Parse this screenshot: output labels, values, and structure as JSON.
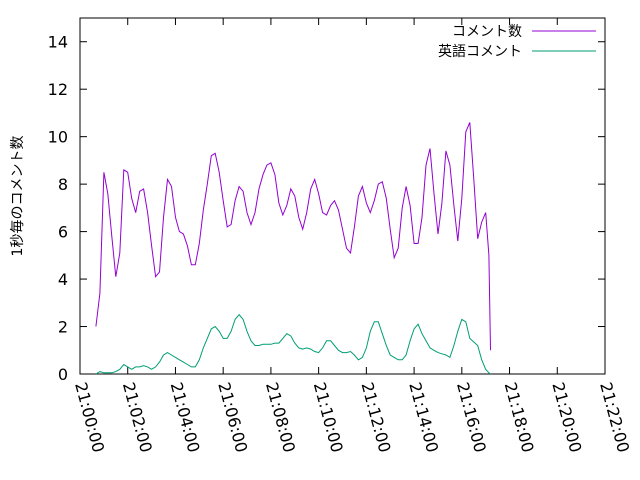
{
  "chart_data": {
    "type": "line",
    "title": "",
    "xlabel": "",
    "ylabel": "1秒毎のコメント数",
    "xlim": [
      "21:00:00",
      "21:22:00"
    ],
    "ylim": [
      0,
      15
    ],
    "x_ticks": [
      "21:00:00",
      "21:02:00",
      "21:04:00",
      "21:06:00",
      "21:08:00",
      "21:10:00",
      "21:12:00",
      "21:14:00",
      "21:16:00",
      "21:18:00",
      "21:20:00",
      "21:22:00"
    ],
    "y_ticks": [
      0,
      2,
      4,
      6,
      8,
      10,
      12,
      14
    ],
    "grid": false,
    "legend_position": "top-right",
    "series": [
      {
        "name": "コメント数",
        "color": "#9400d3",
        "points": [
          [
            "21:00:40",
            2.0
          ],
          [
            "21:00:50",
            3.4
          ],
          [
            "21:01:00",
            8.5
          ],
          [
            "21:01:10",
            7.6
          ],
          [
            "21:01:20",
            5.8
          ],
          [
            "21:01:30",
            4.1
          ],
          [
            "21:01:40",
            5.1
          ],
          [
            "21:01:50",
            8.6
          ],
          [
            "21:02:00",
            8.5
          ],
          [
            "21:02:10",
            7.4
          ],
          [
            "21:02:20",
            6.8
          ],
          [
            "21:02:30",
            7.7
          ],
          [
            "21:02:40",
            7.8
          ],
          [
            "21:02:50",
            6.8
          ],
          [
            "21:03:00",
            5.4
          ],
          [
            "21:03:10",
            4.1
          ],
          [
            "21:03:20",
            4.3
          ],
          [
            "21:03:30",
            6.6
          ],
          [
            "21:03:40",
            8.2
          ],
          [
            "21:03:50",
            7.9
          ],
          [
            "21:04:00",
            6.6
          ],
          [
            "21:04:10",
            6.0
          ],
          [
            "21:04:20",
            5.9
          ],
          [
            "21:04:30",
            5.4
          ],
          [
            "21:04:40",
            4.6
          ],
          [
            "21:04:50",
            4.6
          ],
          [
            "21:05:00",
            5.5
          ],
          [
            "21:05:10",
            6.9
          ],
          [
            "21:05:20",
            8.0
          ],
          [
            "21:05:30",
            9.2
          ],
          [
            "21:05:40",
            9.3
          ],
          [
            "21:05:50",
            8.5
          ],
          [
            "21:06:00",
            7.3
          ],
          [
            "21:06:10",
            6.2
          ],
          [
            "21:06:20",
            6.3
          ],
          [
            "21:06:30",
            7.3
          ],
          [
            "21:06:40",
            7.9
          ],
          [
            "21:06:50",
            7.7
          ],
          [
            "21:07:00",
            6.8
          ],
          [
            "21:07:10",
            6.3
          ],
          [
            "21:07:20",
            6.8
          ],
          [
            "21:07:30",
            7.8
          ],
          [
            "21:07:40",
            8.4
          ],
          [
            "21:07:50",
            8.8
          ],
          [
            "21:08:00",
            8.9
          ],
          [
            "21:08:10",
            8.4
          ],
          [
            "21:08:20",
            7.2
          ],
          [
            "21:08:30",
            6.7
          ],
          [
            "21:08:40",
            7.1
          ],
          [
            "21:08:50",
            7.8
          ],
          [
            "21:09:00",
            7.5
          ],
          [
            "21:09:10",
            6.6
          ],
          [
            "21:09:20",
            6.1
          ],
          [
            "21:09:30",
            6.8
          ],
          [
            "21:09:40",
            7.8
          ],
          [
            "21:09:50",
            8.2
          ],
          [
            "21:10:00",
            7.6
          ],
          [
            "21:10:10",
            6.8
          ],
          [
            "21:10:20",
            6.7
          ],
          [
            "21:10:30",
            7.1
          ],
          [
            "21:10:40",
            7.3
          ],
          [
            "21:10:50",
            6.9
          ],
          [
            "21:11:00",
            6.1
          ],
          [
            "21:11:10",
            5.3
          ],
          [
            "21:11:20",
            5.1
          ],
          [
            "21:11:30",
            6.2
          ],
          [
            "21:11:40",
            7.5
          ],
          [
            "21:11:50",
            7.9
          ],
          [
            "21:12:00",
            7.2
          ],
          [
            "21:12:10",
            6.8
          ],
          [
            "21:12:20",
            7.3
          ],
          [
            "21:12:30",
            8.0
          ],
          [
            "21:12:40",
            8.1
          ],
          [
            "21:12:50",
            7.4
          ],
          [
            "21:13:00",
            6.1
          ],
          [
            "21:13:10",
            4.9
          ],
          [
            "21:13:20",
            5.3
          ],
          [
            "21:13:30",
            7.0
          ],
          [
            "21:13:40",
            7.9
          ],
          [
            "21:13:50",
            7.1
          ],
          [
            "21:14:00",
            5.5
          ],
          [
            "21:14:10",
            5.5
          ],
          [
            "21:14:20",
            6.6
          ],
          [
            "21:14:30",
            8.8
          ],
          [
            "21:14:40",
            9.5
          ],
          [
            "21:14:50",
            7.6
          ],
          [
            "21:15:00",
            5.9
          ],
          [
            "21:15:10",
            7.2
          ],
          [
            "21:15:20",
            9.4
          ],
          [
            "21:15:30",
            8.8
          ],
          [
            "21:15:40",
            7.1
          ],
          [
            "21:15:50",
            5.6
          ],
          [
            "21:16:00",
            7.4
          ],
          [
            "21:16:10",
            10.2
          ],
          [
            "21:16:20",
            10.6
          ],
          [
            "21:16:30",
            8.2
          ],
          [
            "21:16:40",
            5.7
          ],
          [
            "21:16:50",
            6.4
          ],
          [
            "21:17:00",
            6.8
          ],
          [
            "21:17:08",
            5.0
          ],
          [
            "21:17:12",
            1.0
          ]
        ]
      },
      {
        "name": "英語コメント",
        "color": "#009e73",
        "points": [
          [
            "21:00:40",
            0.0
          ],
          [
            "21:00:50",
            0.1
          ],
          [
            "21:01:00",
            0.05
          ],
          [
            "21:01:10",
            0.05
          ],
          [
            "21:01:20",
            0.05
          ],
          [
            "21:01:30",
            0.1
          ],
          [
            "21:01:40",
            0.2
          ],
          [
            "21:01:50",
            0.4
          ],
          [
            "21:02:00",
            0.3
          ],
          [
            "21:02:10",
            0.2
          ],
          [
            "21:02:20",
            0.3
          ],
          [
            "21:02:30",
            0.3
          ],
          [
            "21:02:40",
            0.35
          ],
          [
            "21:02:50",
            0.3
          ],
          [
            "21:03:00",
            0.2
          ],
          [
            "21:03:10",
            0.3
          ],
          [
            "21:03:20",
            0.5
          ],
          [
            "21:03:30",
            0.8
          ],
          [
            "21:03:40",
            0.9
          ],
          [
            "21:03:50",
            0.8
          ],
          [
            "21:04:00",
            0.7
          ],
          [
            "21:04:10",
            0.6
          ],
          [
            "21:04:20",
            0.5
          ],
          [
            "21:04:30",
            0.4
          ],
          [
            "21:04:40",
            0.3
          ],
          [
            "21:04:50",
            0.3
          ],
          [
            "21:05:00",
            0.6
          ],
          [
            "21:05:10",
            1.1
          ],
          [
            "21:05:20",
            1.5
          ],
          [
            "21:05:30",
            1.9
          ],
          [
            "21:05:40",
            2.0
          ],
          [
            "21:05:50",
            1.8
          ],
          [
            "21:06:00",
            1.5
          ],
          [
            "21:06:10",
            1.5
          ],
          [
            "21:06:20",
            1.8
          ],
          [
            "21:06:30",
            2.3
          ],
          [
            "21:06:40",
            2.5
          ],
          [
            "21:06:50",
            2.3
          ],
          [
            "21:07:00",
            1.8
          ],
          [
            "21:07:10",
            1.4
          ],
          [
            "21:07:20",
            1.2
          ],
          [
            "21:07:30",
            1.2
          ],
          [
            "21:07:40",
            1.25
          ],
          [
            "21:07:50",
            1.25
          ],
          [
            "21:08:00",
            1.25
          ],
          [
            "21:08:10",
            1.3
          ],
          [
            "21:08:20",
            1.3
          ],
          [
            "21:08:30",
            1.5
          ],
          [
            "21:08:40",
            1.7
          ],
          [
            "21:08:50",
            1.6
          ],
          [
            "21:09:00",
            1.3
          ],
          [
            "21:09:10",
            1.1
          ],
          [
            "21:09:20",
            1.05
          ],
          [
            "21:09:30",
            1.1
          ],
          [
            "21:09:40",
            1.05
          ],
          [
            "21:09:50",
            0.95
          ],
          [
            "21:10:00",
            0.9
          ],
          [
            "21:10:10",
            1.1
          ],
          [
            "21:10:20",
            1.4
          ],
          [
            "21:10:30",
            1.4
          ],
          [
            "21:10:40",
            1.2
          ],
          [
            "21:10:50",
            1.0
          ],
          [
            "21:11:00",
            0.9
          ],
          [
            "21:11:10",
            0.9
          ],
          [
            "21:11:20",
            0.95
          ],
          [
            "21:11:30",
            0.8
          ],
          [
            "21:11:40",
            0.6
          ],
          [
            "21:11:50",
            0.7
          ],
          [
            "21:12:00",
            1.1
          ],
          [
            "21:12:10",
            1.8
          ],
          [
            "21:12:20",
            2.2
          ],
          [
            "21:12:30",
            2.2
          ],
          [
            "21:12:40",
            1.7
          ],
          [
            "21:12:50",
            1.2
          ],
          [
            "21:13:00",
            0.8
          ],
          [
            "21:13:10",
            0.7
          ],
          [
            "21:13:20",
            0.6
          ],
          [
            "21:13:30",
            0.6
          ],
          [
            "21:13:40",
            0.8
          ],
          [
            "21:13:50",
            1.4
          ],
          [
            "21:14:00",
            1.9
          ],
          [
            "21:14:10",
            2.1
          ],
          [
            "21:14:20",
            1.7
          ],
          [
            "21:14:30",
            1.4
          ],
          [
            "21:14:40",
            1.1
          ],
          [
            "21:14:50",
            1.0
          ],
          [
            "21:15:00",
            0.9
          ],
          [
            "21:15:10",
            0.85
          ],
          [
            "21:15:20",
            0.8
          ],
          [
            "21:15:30",
            0.7
          ],
          [
            "21:15:40",
            1.2
          ],
          [
            "21:15:50",
            1.8
          ],
          [
            "21:16:00",
            2.3
          ],
          [
            "21:16:10",
            2.2
          ],
          [
            "21:16:20",
            1.5
          ],
          [
            "21:16:30",
            1.35
          ],
          [
            "21:16:40",
            1.2
          ],
          [
            "21:16:50",
            0.6
          ],
          [
            "21:17:00",
            0.2
          ],
          [
            "21:17:08",
            0.05
          ],
          [
            "21:17:12",
            0.0
          ]
        ]
      }
    ]
  }
}
